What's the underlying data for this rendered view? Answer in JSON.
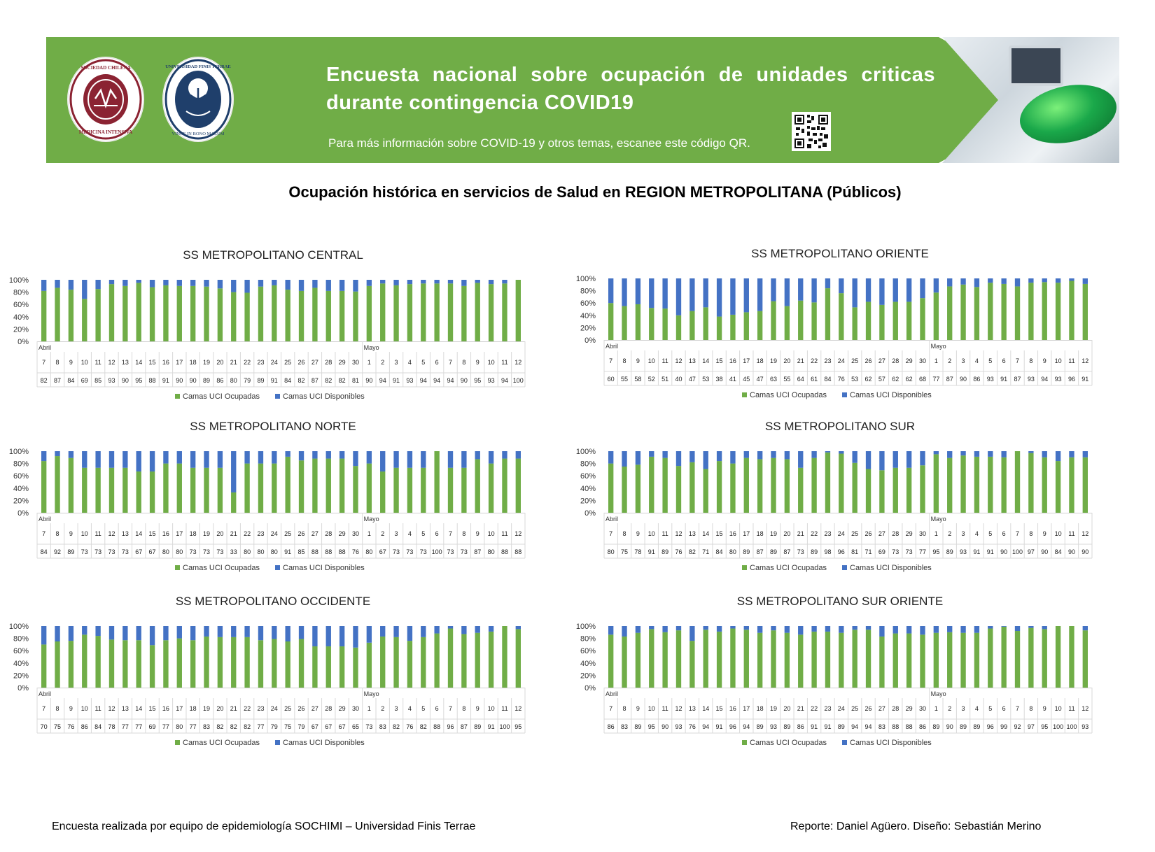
{
  "banner": {
    "title": "Encuesta nacional sobre ocupación de unidades criticas durante contingencia COVID19",
    "subtitle": "Para más información sobre COVID-19 y otros temas, escanee este código QR.",
    "logo1_text": "SOCIEDAD CHILENA DE MEDICINA INTENSIVA",
    "logo2_text": "UNIVERSIDAD FINIS TERRAE · VINCE IN BONO MALUM",
    "qr_icon": "qr-code-icon",
    "colors": {
      "banner": "#70ad47",
      "logo1": "#8b2332",
      "logo2": "#1f3f6b"
    }
  },
  "page_title": "Ocupación histórica en servicios de Salud en REGION METROPOLITANA (Públicos)",
  "footer": {
    "left": "Encuesta realizada por equipo de epidemiología SOCHIMI – Universidad Finis Terrae",
    "right": "Reporte: Daniel Agüero. Diseño: Sebastián Merino"
  },
  "chart_data": [
    {
      "type": "bar",
      "stacked": true,
      "title": "SS METROPOLITANO CENTRAL",
      "months": [
        {
          "label": "Abril",
          "start_index": 0
        },
        {
          "label": "Mayo",
          "start_index": 24
        }
      ],
      "categories": [
        "7",
        "8",
        "9",
        "10",
        "11",
        "12",
        "13",
        "14",
        "15",
        "16",
        "17",
        "18",
        "19",
        "20",
        "21",
        "22",
        "23",
        "24",
        "25",
        "26",
        "27",
        "28",
        "29",
        "30",
        "1",
        "2",
        "3",
        "4",
        "5",
        "6",
        "7",
        "8",
        "9",
        "10",
        "11",
        "12"
      ],
      "yticks": [
        "0%",
        "20%",
        "40%",
        "60%",
        "80%",
        "100%"
      ],
      "ylim": [
        0,
        100
      ],
      "series": [
        {
          "name": "Camas UCI Ocupadas",
          "color": "#70ad47",
          "values": [
            82,
            87,
            84,
            69,
            85,
            93,
            90,
            95,
            88,
            91,
            90,
            90,
            89,
            86,
            80,
            79,
            89,
            91,
            84,
            82,
            87,
            82,
            82,
            81,
            90,
            94,
            91,
            93,
            94,
            94,
            94,
            90,
            95,
            93,
            94,
            100
          ]
        },
        {
          "name": "Camas UCI Disponibles",
          "color": "#4472c4",
          "values": [
            18,
            13,
            16,
            31,
            15,
            7,
            10,
            5,
            12,
            9,
            10,
            10,
            11,
            14,
            20,
            21,
            11,
            9,
            16,
            18,
            13,
            18,
            18,
            19,
            10,
            6,
            9,
            7,
            6,
            6,
            6,
            10,
            5,
            7,
            6,
            0
          ]
        }
      ],
      "legend": "bottom"
    },
    {
      "type": "bar",
      "stacked": true,
      "title": "SS METROPOLITANO ORIENTE",
      "months": [
        {
          "label": "Abril",
          "start_index": 0
        },
        {
          "label": "Mayo",
          "start_index": 24
        }
      ],
      "categories": [
        "7",
        "8",
        "9",
        "10",
        "11",
        "12",
        "13",
        "14",
        "15",
        "16",
        "17",
        "18",
        "19",
        "20",
        "21",
        "22",
        "23",
        "24",
        "25",
        "26",
        "27",
        "28",
        "29",
        "30",
        "1",
        "2",
        "3",
        "4",
        "5",
        "6",
        "7",
        "8",
        "9",
        "10",
        "11",
        "12"
      ],
      "yticks": [
        "0%",
        "20%",
        "40%",
        "60%",
        "80%",
        "100%"
      ],
      "ylim": [
        0,
        100
      ],
      "series": [
        {
          "name": "Camas UCI Ocupadas",
          "color": "#70ad47",
          "values": [
            60,
            55,
            58,
            52,
            51,
            40,
            47,
            53,
            38,
            41,
            45,
            47,
            63,
            55,
            64,
            61,
            84,
            76,
            53,
            62,
            57,
            62,
            62,
            68,
            77,
            87,
            90,
            86,
            93,
            91,
            87,
            93,
            94,
            93,
            96,
            91
          ]
        },
        {
          "name": "Camas UCI Disponibles",
          "color": "#4472c4",
          "values": [
            40,
            45,
            42,
            48,
            49,
            60,
            53,
            47,
            62,
            59,
            55,
            53,
            37,
            45,
            36,
            39,
            16,
            24,
            47,
            38,
            43,
            38,
            38,
            32,
            23,
            13,
            10,
            14,
            7,
            9,
            13,
            7,
            6,
            7,
            4,
            9
          ]
        }
      ],
      "legend": "bottom"
    },
    {
      "type": "bar",
      "stacked": true,
      "title": "SS METROPOLITANO NORTE",
      "months": [
        {
          "label": "Abril",
          "start_index": 0
        },
        {
          "label": "Mayo",
          "start_index": 24
        }
      ],
      "categories": [
        "7",
        "8",
        "9",
        "10",
        "11",
        "12",
        "13",
        "14",
        "15",
        "16",
        "17",
        "18",
        "19",
        "20",
        "21",
        "22",
        "23",
        "24",
        "25",
        "26",
        "27",
        "28",
        "29",
        "30",
        "1",
        "2",
        "3",
        "4",
        "5",
        "6",
        "7",
        "8",
        "9",
        "10",
        "11",
        "12"
      ],
      "yticks": [
        "0%",
        "20%",
        "40%",
        "60%",
        "80%",
        "100%"
      ],
      "ylim": [
        0,
        100
      ],
      "series": [
        {
          "name": "Camas UCI Ocupadas",
          "color": "#70ad47",
          "values": [
            84,
            92,
            89,
            73,
            73,
            73,
            73,
            67,
            67,
            80,
            80,
            73,
            73,
            73,
            33,
            80,
            80,
            80,
            91,
            85,
            88,
            88,
            88,
            76,
            80,
            67,
            73,
            73,
            73,
            100,
            73,
            73,
            87,
            80,
            88,
            88
          ]
        },
        {
          "name": "Camas UCI Disponibles",
          "color": "#4472c4",
          "values": [
            16,
            8,
            11,
            27,
            27,
            27,
            27,
            33,
            33,
            20,
            20,
            27,
            27,
            27,
            67,
            20,
            20,
            20,
            9,
            15,
            12,
            12,
            12,
            24,
            20,
            33,
            27,
            27,
            27,
            0,
            27,
            27,
            13,
            20,
            12,
            12
          ]
        }
      ],
      "legend": "bottom"
    },
    {
      "type": "bar",
      "stacked": true,
      "title": "SS METROPOLITANO SUR",
      "months": [
        {
          "label": "Abril",
          "start_index": 0
        },
        {
          "label": "Mayo",
          "start_index": 24
        }
      ],
      "categories": [
        "7",
        "8",
        "9",
        "10",
        "11",
        "12",
        "13",
        "14",
        "15",
        "16",
        "17",
        "18",
        "19",
        "20",
        "21",
        "22",
        "23",
        "24",
        "25",
        "26",
        "27",
        "28",
        "29",
        "30",
        "1",
        "2",
        "3",
        "4",
        "5",
        "6",
        "7",
        "8",
        "9",
        "10",
        "11",
        "12"
      ],
      "yticks": [
        "0%",
        "20%",
        "40%",
        "60%",
        "80%",
        "100%"
      ],
      "ylim": [
        0,
        100
      ],
      "series": [
        {
          "name": "Camas UCI Ocupadas",
          "color": "#70ad47",
          "values": [
            80,
            75,
            78,
            91,
            89,
            76,
            82,
            71,
            84,
            80,
            89,
            87,
            89,
            87,
            73,
            89,
            98,
            96,
            81,
            71,
            69,
            73,
            73,
            77,
            95,
            89,
            93,
            91,
            91,
            90,
            100,
            97,
            90,
            84,
            90,
            90
          ]
        },
        {
          "name": "Camas UCI Disponibles",
          "color": "#4472c4",
          "values": [
            20,
            25,
            22,
            9,
            11,
            24,
            18,
            29,
            16,
            20,
            11,
            13,
            11,
            13,
            27,
            11,
            2,
            4,
            19,
            29,
            31,
            27,
            27,
            23,
            5,
            11,
            7,
            9,
            9,
            10,
            0,
            3,
            10,
            16,
            10,
            10
          ]
        }
      ],
      "legend": "bottom"
    },
    {
      "type": "bar",
      "stacked": true,
      "title": "SS METROPOLITANO OCCIDENTE",
      "months": [
        {
          "label": "Abril",
          "start_index": 0
        },
        {
          "label": "Mayo",
          "start_index": 24
        }
      ],
      "categories": [
        "7",
        "8",
        "9",
        "10",
        "11",
        "12",
        "13",
        "14",
        "15",
        "16",
        "17",
        "18",
        "19",
        "20",
        "21",
        "22",
        "23",
        "24",
        "25",
        "26",
        "27",
        "28",
        "29",
        "30",
        "1",
        "2",
        "3",
        "4",
        "5",
        "6",
        "7",
        "8",
        "9",
        "10",
        "11",
        "12"
      ],
      "yticks": [
        "0%",
        "20%",
        "40%",
        "60%",
        "80%",
        "100%"
      ],
      "ylim": [
        0,
        100
      ],
      "series": [
        {
          "name": "Camas UCI Ocupadas",
          "color": "#70ad47",
          "values": [
            70,
            75,
            76,
            86,
            84,
            78,
            77,
            77,
            69,
            77,
            80,
            77,
            83,
            82,
            82,
            82,
            77,
            79,
            75,
            79,
            67,
            67,
            67,
            65,
            73,
            83,
            82,
            76,
            82,
            88,
            96,
            87,
            89,
            91,
            100,
            95
          ]
        },
        {
          "name": "Camas UCI Disponibles",
          "color": "#4472c4",
          "values": [
            30,
            25,
            24,
            14,
            16,
            22,
            23,
            23,
            31,
            23,
            20,
            23,
            17,
            18,
            18,
            18,
            23,
            21,
            25,
            21,
            33,
            33,
            33,
            35,
            27,
            17,
            18,
            24,
            18,
            12,
            4,
            13,
            11,
            9,
            0,
            5
          ]
        }
      ],
      "legend": "bottom"
    },
    {
      "type": "bar",
      "stacked": true,
      "title": "SS METROPOLITANO SUR ORIENTE",
      "months": [
        {
          "label": "Abril",
          "start_index": 0
        },
        {
          "label": "Mayo",
          "start_index": 24
        }
      ],
      "categories": [
        "7",
        "8",
        "9",
        "10",
        "11",
        "12",
        "13",
        "14",
        "15",
        "16",
        "17",
        "18",
        "19",
        "20",
        "21",
        "22",
        "23",
        "24",
        "25",
        "26",
        "27",
        "28",
        "29",
        "30",
        "1",
        "2",
        "3",
        "4",
        "5",
        "6",
        "7",
        "8",
        "9",
        "10",
        "11",
        "12"
      ],
      "yticks": [
        "0%",
        "20%",
        "40%",
        "60%",
        "80%",
        "100%"
      ],
      "ylim": [
        0,
        100
      ],
      "series": [
        {
          "name": "Camas UCI Ocupadas",
          "color": "#70ad47",
          "values": [
            86,
            83,
            89,
            95,
            90,
            93,
            76,
            94,
            91,
            96,
            94,
            89,
            93,
            89,
            86,
            91,
            91,
            89,
            94,
            94,
            83,
            88,
            88,
            86,
            89,
            90,
            89,
            89,
            96,
            99,
            92,
            97,
            95,
            100,
            100,
            93
          ]
        },
        {
          "name": "Camas UCI Disponibles",
          "color": "#4472c4",
          "values": [
            14,
            17,
            11,
            5,
            10,
            7,
            24,
            6,
            9,
            4,
            6,
            11,
            7,
            11,
            14,
            9,
            9,
            11,
            6,
            6,
            17,
            12,
            12,
            14,
            11,
            10,
            11,
            11,
            4,
            1,
            8,
            3,
            5,
            0,
            0,
            7
          ]
        }
      ],
      "legend": "bottom"
    }
  ]
}
